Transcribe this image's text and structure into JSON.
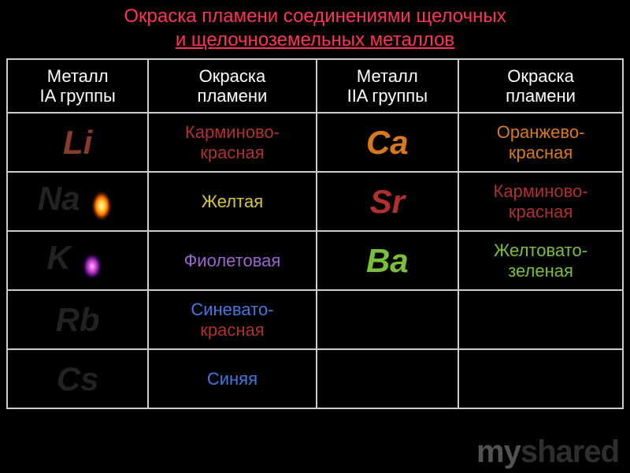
{
  "title": {
    "line1": "Окраска пламени соединениями щелочных",
    "line2": "и щелочноземельных металлов"
  },
  "colors": {
    "title": "#ff3355",
    "header_text": "#ffffff",
    "border": "#cccccc",
    "background": "#000000",
    "carmine": "#b03030",
    "orange_red": "#d97a1a",
    "yellow": "#e6d233",
    "violet": "#9966cc",
    "green": "#7abf3a",
    "blue": "#4477dd",
    "elem_default": "#222222",
    "elem_li": "#8a3a2a"
  },
  "table": {
    "headers": [
      {
        "line1": "Металл",
        "line2": "IA группы"
      },
      {
        "line1": "Окраска",
        "line2": "пламени"
      },
      {
        "line1": "Металл",
        "line2": "IIA группы"
      },
      {
        "line1": "Окраска",
        "line2": "пламени"
      }
    ],
    "rows": [
      {
        "m1": "Li",
        "m1_color": "#8a3a2a",
        "m1_flame": null,
        "c1_l1": "Карминово-",
        "c1_l2": "красная",
        "c1_color": "#b03030",
        "m2": "Ca",
        "m2_color": "#d97a1a",
        "c2_l1": "Оранжево-",
        "c2_l2": "красная",
        "c2_color": "#d97a1a"
      },
      {
        "m1": "Na",
        "m1_color": "#222222",
        "m1_flame": "na",
        "c1_l1": "Желтая",
        "c1_l2": "",
        "c1_color": "#d9c733",
        "m2": "Sr",
        "m2_color": "#b03030",
        "c2_l1": "Карминово-",
        "c2_l2": "красная",
        "c2_color": "#b03030"
      },
      {
        "m1": "K",
        "m1_color": "#222222",
        "m1_flame": "k",
        "c1_l1": "Фиолетовая",
        "c1_l2": "",
        "c1_color": "#9966cc",
        "m2": "Ba",
        "m2_color": "#7abf3a",
        "c2_l1": "Желтовато-",
        "c2_l2": "зеленая",
        "c2_color": "#7abf3a"
      },
      {
        "m1": "Rb",
        "m1_color": "#222222",
        "m1_flame": null,
        "c1_l1": "Синевато-",
        "c1_l2": "красная",
        "c1_color_l1": "#4477dd",
        "c1_color_l2": "#b03030",
        "m2": "",
        "m2_color": "#222222",
        "c2_l1": "",
        "c2_l2": "",
        "c2_color": "#ffffff"
      },
      {
        "m1": "Cs",
        "m1_color": "#222222",
        "m1_flame": null,
        "c1_l1": "Синяя",
        "c1_l2": "",
        "c1_color": "#4477dd",
        "m2": "",
        "m2_color": "#222222",
        "c2_l1": "",
        "c2_l2": "",
        "c2_color": "#ffffff"
      }
    ]
  },
  "watermark": {
    "my": "my",
    "shared": "shared"
  }
}
